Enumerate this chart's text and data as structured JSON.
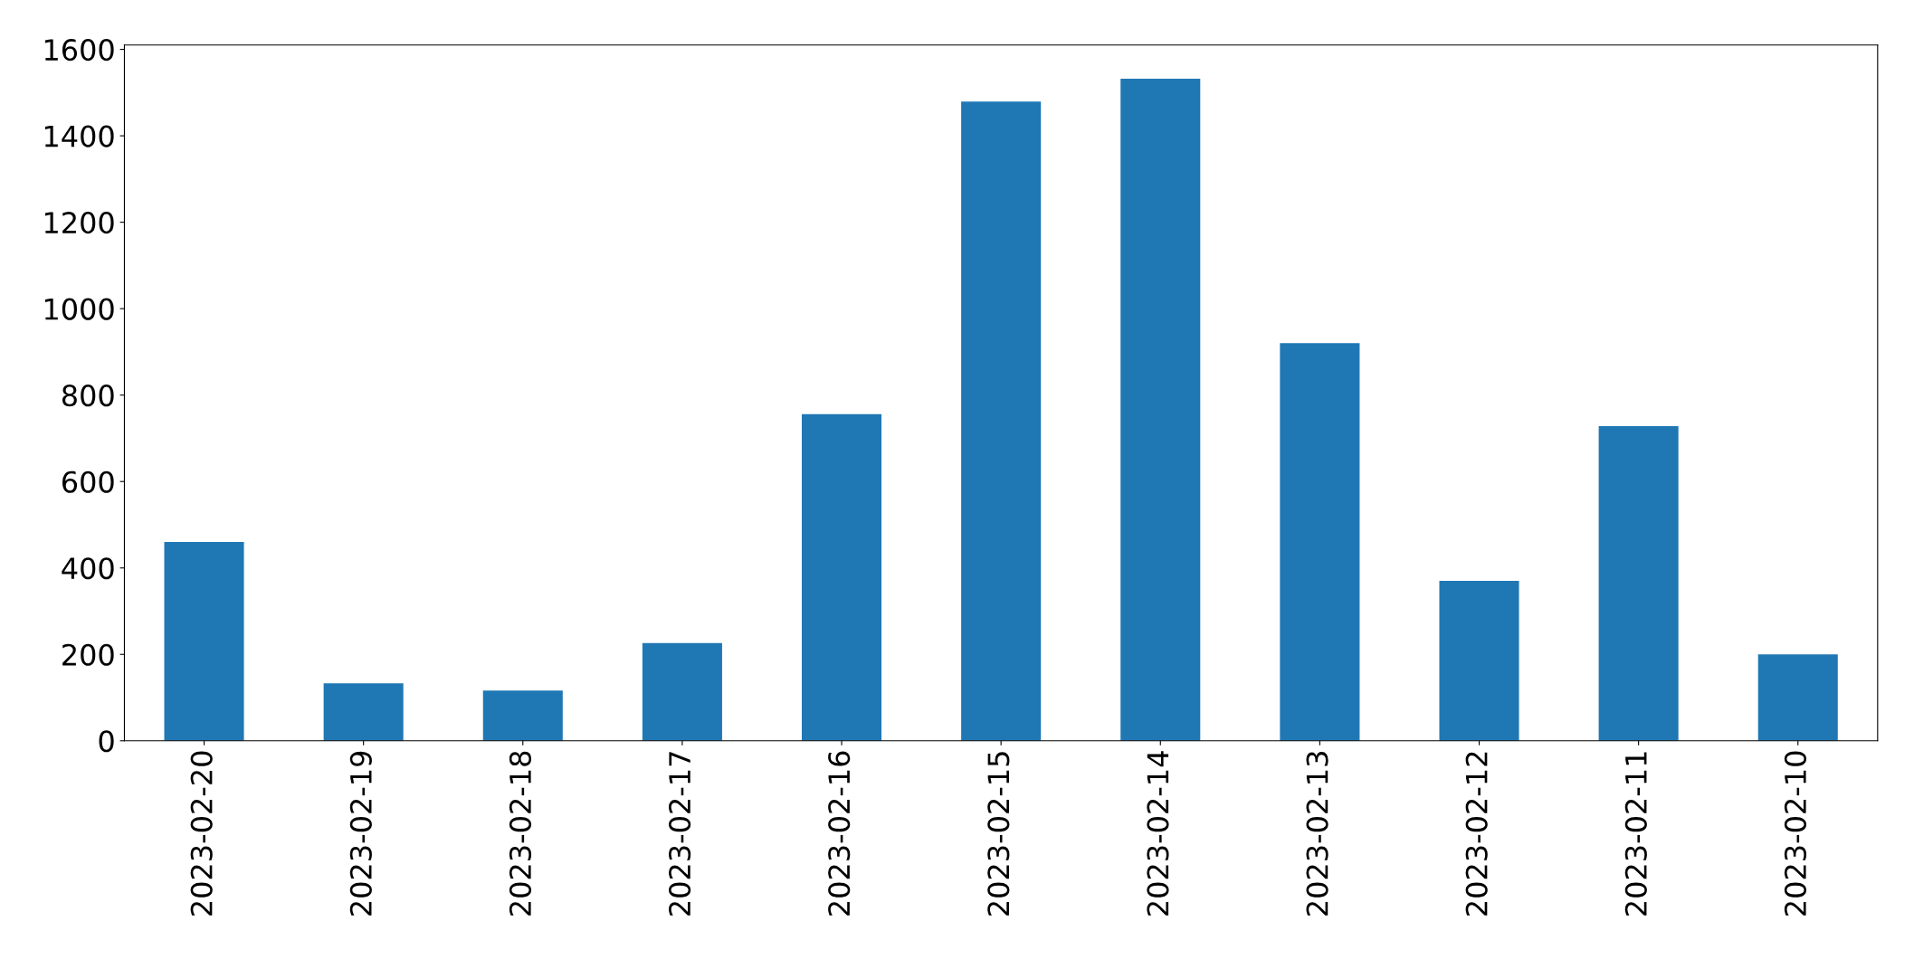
{
  "chart_data": {
    "type": "bar",
    "categories": [
      "2023-02-20",
      "2023-02-19",
      "2023-02-18",
      "2023-02-17",
      "2023-02-16",
      "2023-02-15",
      "2023-02-14",
      "2023-02-13",
      "2023-02-12",
      "2023-02-11",
      "2023-02-10"
    ],
    "values": [
      460,
      133,
      116,
      226,
      756,
      1479,
      1532,
      920,
      370,
      728,
      200
    ],
    "color": "#1f77b4",
    "ylim": [
      0,
      1610
    ],
    "yticks": [
      0,
      200,
      400,
      600,
      800,
      1000,
      1200,
      1400,
      1600
    ],
    "grid": false,
    "legend": false
  }
}
